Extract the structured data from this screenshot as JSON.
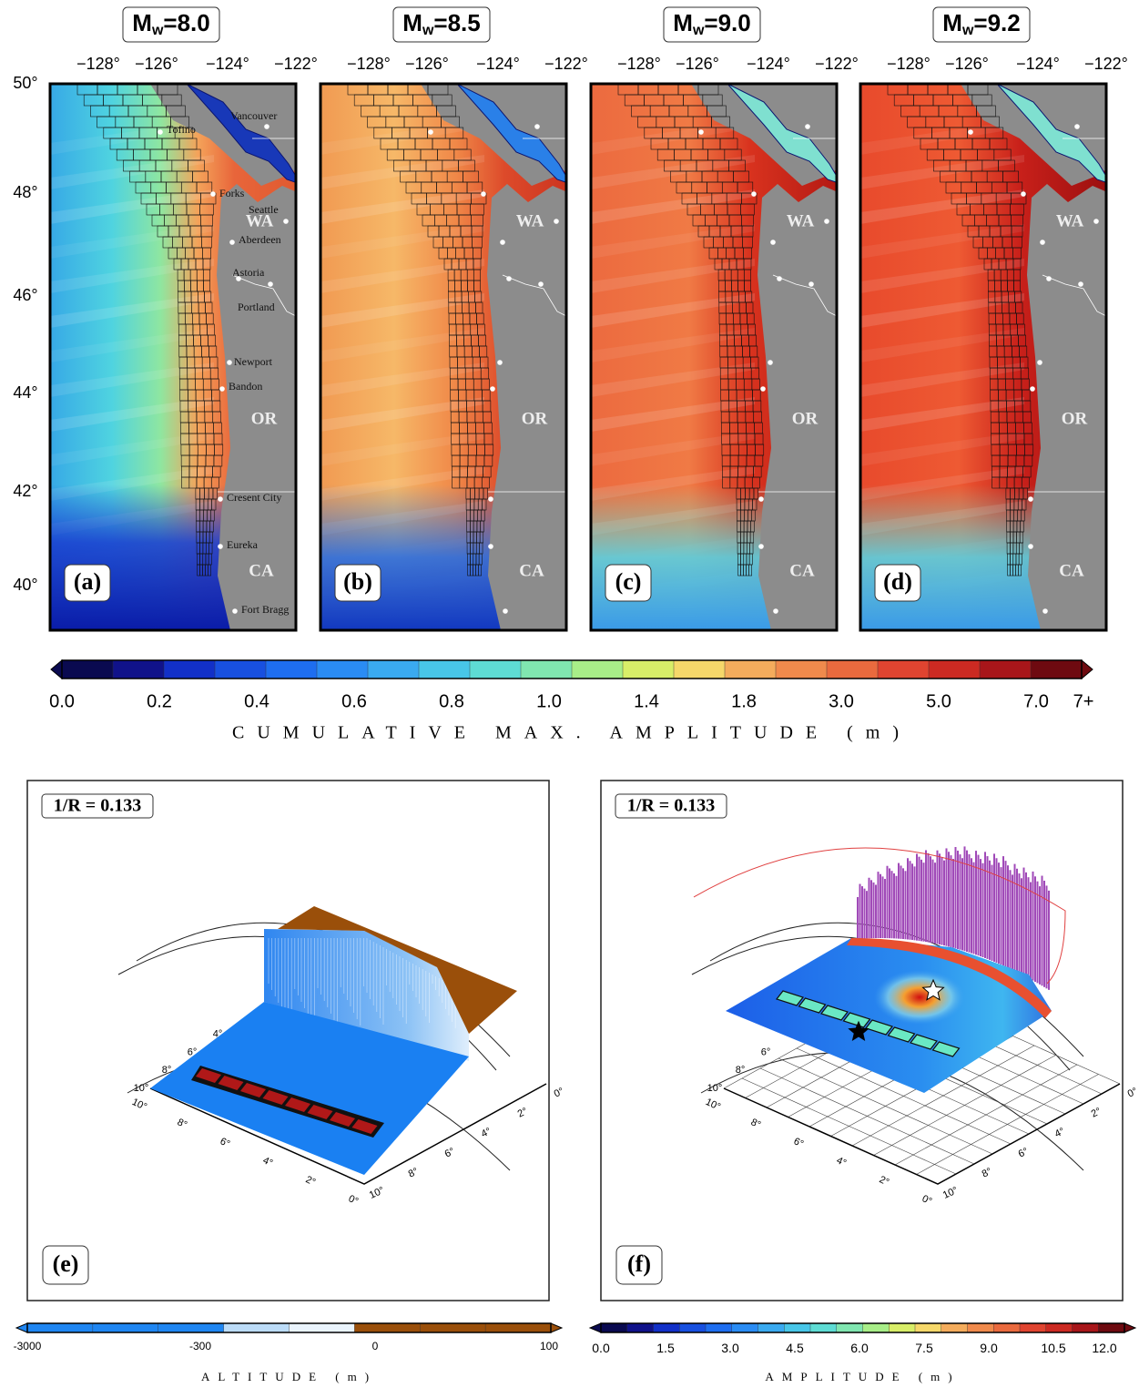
{
  "panels": [
    {
      "title": {
        "base": "M",
        "sub": "w",
        "rest": "=8.0"
      },
      "label": "(a)"
    },
    {
      "title": {
        "base": "M",
        "sub": "w",
        "rest": "=8.5"
      },
      "label": "(b)"
    },
    {
      "title": {
        "base": "M",
        "sub": "w",
        "rest": "=9.0"
      },
      "label": "(c)"
    },
    {
      "title": {
        "base": "M",
        "sub": "w",
        "rest": "=9.2"
      },
      "label": "(d)"
    }
  ],
  "lon_labels": [
    "−128°",
    "−126°",
    "−124°",
    "−122°"
  ],
  "lat_labels": [
    "50°",
    "48°",
    "46°",
    "44°",
    "42°",
    "40°"
  ],
  "cities": [
    "Tofino",
    "Vancouver",
    "Forks",
    "Seattle",
    "Aberdeen",
    "Astoria",
    "Portland",
    "Newport",
    "Bandon",
    "Cresent City",
    "Eureka",
    "Fort Bragg"
  ],
  "states": [
    "WA",
    "OR",
    "CA"
  ],
  "colorbar": {
    "labels": [
      "0.0",
      "0.2",
      "0.4",
      "0.6",
      "0.8",
      "1.0",
      "1.4",
      "1.8",
      "3.0",
      "5.0",
      "7.0",
      "7+"
    ],
    "title": "CUMULATIVE MAX. AMPLITUDE (m)"
  },
  "bottom_panels": [
    {
      "annotation": "1/R = 0.133",
      "label": "(e)",
      "axis_front": [
        "10°",
        "8°",
        "6°",
        "4°",
        "2°",
        "0°"
      ],
      "axis_right": [
        "0°",
        "2°",
        "4°",
        "6°",
        "8°",
        "10°"
      ],
      "axis_back": [
        "10°",
        "8°",
        "6°",
        "4°"
      ],
      "colorbar": {
        "labels": [
          "-3000",
          "-300",
          "0",
          "100"
        ],
        "title": "ALTITUDE (m)"
      }
    },
    {
      "annotation": "1/R = 0.133",
      "label": "(f)",
      "axis_front": [
        "10°",
        "8°",
        "6°",
        "4°",
        "2°",
        "0°"
      ],
      "axis_right": [
        "0°",
        "2°",
        "4°",
        "6°",
        "8°",
        "10°"
      ],
      "axis_back": [
        "10°",
        "8°",
        "6°"
      ],
      "colorbar": {
        "labels": [
          "0.0",
          "1.5",
          "3.0",
          "4.5",
          "6.0",
          "7.5",
          "9.0",
          "10.5",
          "12.0"
        ],
        "title": "AMPLITUDE (m)"
      }
    }
  ]
}
